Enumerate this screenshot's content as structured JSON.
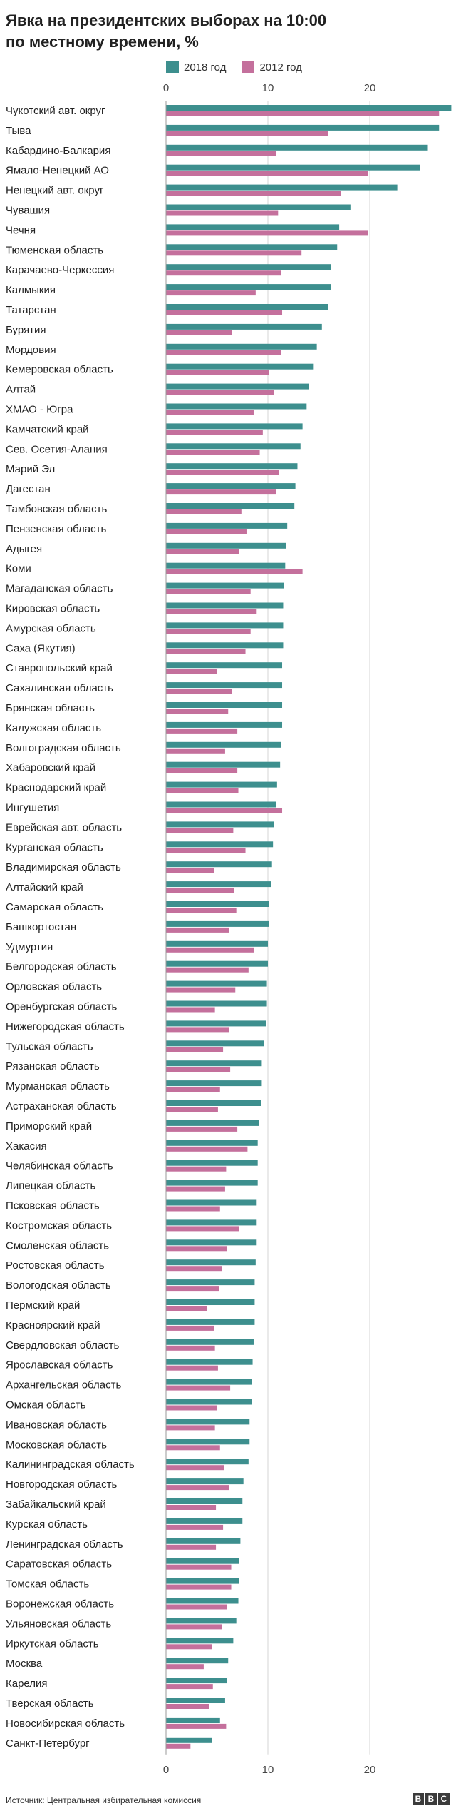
{
  "title_line1": "Явка на президентских выборах на 10:00",
  "title_line2": "по местному времени, %",
  "legend": [
    {
      "label": "2018 год",
      "color": "#3d8f8e"
    },
    {
      "label": "2012 год",
      "color": "#c4709c"
    }
  ],
  "source": "Источник: Центральная избирательная комиссия",
  "logo": [
    "B",
    "B",
    "C"
  ],
  "chart_data": {
    "type": "bar",
    "orientation": "horizontal",
    "title": "Явка на президентских выборах на 10:00 по местному времени, %",
    "xlim": [
      0,
      28
    ],
    "ticks": [
      0,
      10,
      20
    ],
    "gridlines": true,
    "legend_position": "top",
    "categories": [
      "Чукотский авт. округ",
      "Тыва",
      "Кабардино-Балкария",
      "Ямало-Ненецкий АО",
      "Ненецкий авт. округ",
      "Чувашия",
      "Чечня",
      "Тюменская область",
      "Карачаево-Черкессия",
      "Калмыкия",
      "Татарстан",
      "Бурятия",
      "Мордовия",
      "Кемеровская область",
      "Алтай",
      "ХМАО - Югра",
      "Камчатский край",
      "Сев. Осетия-Алания",
      "Марий Эл",
      "Дагестан",
      "Тамбовская область",
      "Пензенская область",
      "Адыгея",
      "Коми",
      "Магаданская область",
      "Кировская область",
      "Амурская область",
      "Саха (Якутия)",
      "Ставропольский край",
      "Сахалинская область",
      "Брянская область",
      "Калужская область",
      "Волгоградская область",
      "Хабаровский край",
      "Краснодарский край",
      "Ингушетия",
      "Еврейская авт. область",
      "Курганская область",
      "Владимирская область",
      "Алтайский край",
      "Самарская область",
      "Башкортостан",
      "Удмуртия",
      "Белгородская область",
      "Орловская область",
      "Оренбургская область",
      "Нижегородская область",
      "Тульская область",
      "Рязанская область",
      "Мурманская область",
      "Астраханская область",
      "Приморский край",
      "Хакасия",
      "Челябинская область",
      "Липецкая область",
      "Псковская область",
      "Костромская область",
      "Смоленская область",
      "Ростовская область",
      "Вологодская область",
      "Пермский край",
      "Красноярский край",
      "Свердловская область",
      "Ярославская область",
      "Архангельская область",
      "Омская область",
      "Ивановская область",
      "Московская область",
      "Калининградская область",
      "Новгородская область",
      "Забайкальский край",
      "Курская область",
      "Ленинградская область",
      "Саратовская область",
      "Томская область",
      "Воронежская область",
      "Ульяновская область",
      "Иркутская область",
      "Москва",
      "Карелия",
      "Тверская область",
      "Новосибирская область",
      "Санкт-Петербург"
    ],
    "series": [
      {
        "name": "2018 год",
        "color": "#3d8f8e",
        "values": [
          28.0,
          26.8,
          25.7,
          24.9,
          22.7,
          18.1,
          17.0,
          16.8,
          16.2,
          16.2,
          15.9,
          15.3,
          14.8,
          14.5,
          14.0,
          13.8,
          13.4,
          13.2,
          12.9,
          12.7,
          12.6,
          11.9,
          11.8,
          11.7,
          11.6,
          11.5,
          11.5,
          11.5,
          11.4,
          11.4,
          11.4,
          11.4,
          11.3,
          11.2,
          10.9,
          10.8,
          10.6,
          10.5,
          10.4,
          10.3,
          10.1,
          10.1,
          10.0,
          10.0,
          9.9,
          9.9,
          9.8,
          9.6,
          9.4,
          9.4,
          9.3,
          9.1,
          9.0,
          9.0,
          9.0,
          8.9,
          8.9,
          8.9,
          8.8,
          8.7,
          8.7,
          8.7,
          8.6,
          8.5,
          8.4,
          8.4,
          8.2,
          8.2,
          8.1,
          7.6,
          7.5,
          7.5,
          7.3,
          7.2,
          7.2,
          7.1,
          6.9,
          6.6,
          6.1,
          6.0,
          5.8,
          5.3,
          4.5
        ]
      },
      {
        "name": "2012 год",
        "color": "#c4709c",
        "values": [
          26.8,
          15.9,
          10.8,
          19.8,
          17.2,
          11.0,
          19.8,
          13.3,
          11.3,
          8.8,
          11.4,
          6.5,
          11.3,
          10.1,
          10.6,
          8.6,
          9.5,
          9.2,
          11.1,
          10.8,
          7.4,
          7.9,
          7.2,
          13.4,
          8.3,
          8.9,
          8.3,
          7.8,
          5.0,
          6.5,
          6.1,
          7.0,
          5.8,
          7.0,
          7.1,
          11.4,
          6.6,
          7.8,
          4.7,
          6.7,
          6.9,
          6.2,
          8.6,
          8.1,
          6.8,
          4.8,
          6.2,
          5.6,
          6.3,
          5.3,
          5.1,
          7.0,
          8.0,
          5.9,
          5.8,
          5.3,
          7.2,
          6.0,
          5.5,
          5.2,
          4.0,
          4.7,
          4.8,
          5.1,
          6.3,
          5.0,
          4.8,
          5.3,
          5.7,
          6.2,
          4.9,
          5.6,
          4.9,
          6.4,
          6.4,
          6.0,
          5.5,
          4.5,
          3.7,
          4.6,
          4.2,
          5.9,
          2.4
        ]
      }
    ]
  }
}
